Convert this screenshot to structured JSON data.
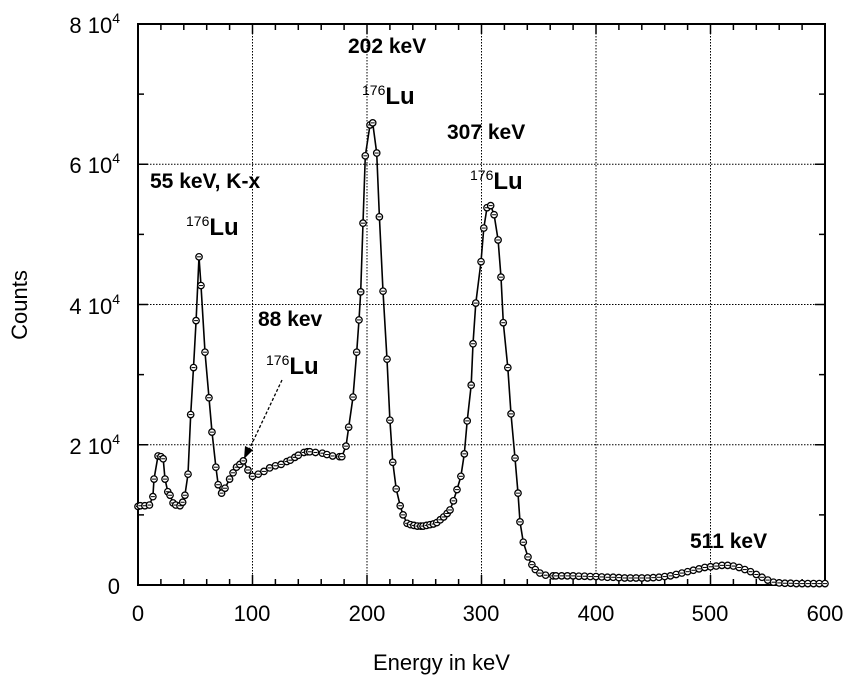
{
  "chart_data": {
    "type": "line",
    "xlabel": "Energy in keV",
    "ylabel": "Counts",
    "xlim": [
      0,
      600
    ],
    "ylim": [
      0,
      80000
    ],
    "grid": true,
    "markers": "circle-cross",
    "x_ticks": [
      "0",
      "100",
      "200",
      "300",
      "400",
      "500",
      "600"
    ],
    "y_ticks": [
      {
        "mantissa": "0",
        "exp": ""
      },
      {
        "mantissa": "2 10",
        "exp": "4"
      },
      {
        "mantissa": "4 10",
        "exp": "4"
      },
      {
        "mantissa": "6 10",
        "exp": "4"
      },
      {
        "mantissa": "8 10",
        "exp": "4"
      }
    ],
    "series": [
      {
        "x": [
          0,
          2,
          6,
          10,
          13,
          14,
          17.5,
          20,
          22,
          23.6,
          26,
          28,
          30.6,
          33,
          36.7,
          39,
          41,
          43.7,
          46,
          48.5,
          50.7,
          53.3,
          55,
          58.5,
          62,
          64.6,
          68,
          70,
          73,
          76,
          80,
          83,
          86,
          89,
          92,
          96,
          100,
          105,
          110,
          115,
          120,
          125,
          130,
          133,
          137,
          140,
          145,
          148,
          150,
          155,
          161,
          165,
          170,
          176,
          178,
          181.7,
          184,
          187.8,
          191,
          193,
          194.5,
          196.5,
          198.5,
          202.6,
          205,
          208.5,
          210.8,
          214,
          217.5,
          220,
          222.5,
          225.5,
          229,
          231.5,
          235,
          238,
          241,
          244,
          247,
          249,
          252,
          255,
          258,
          261,
          264,
          267,
          270,
          272.5,
          275.5,
          278.6,
          282,
          285,
          287.5,
          291,
          292.6,
          295,
          299.6,
          302,
          304.8,
          308,
          311,
          314.5,
          317,
          319,
          323,
          325.8,
          329.3,
          331.9,
          333.6,
          336.5,
          340.6,
          344,
          347,
          351,
          356,
          362.5,
          365,
          370,
          375,
          380,
          385,
          390,
          395,
          400,
          405,
          410,
          415,
          420,
          425,
          430,
          435,
          440,
          445,
          450,
          455,
          460,
          465,
          470,
          475,
          480,
          485,
          490,
          495,
          500,
          505,
          510,
          515,
          520,
          525,
          530,
          535,
          540,
          545,
          550,
          555,
          560,
          565,
          570,
          575,
          580,
          585,
          590,
          595,
          600
        ],
        "y": [
          11200,
          11300,
          11300,
          11400,
          12600,
          15100,
          18400,
          18300,
          18000,
          15100,
          13300,
          12800,
          11700,
          11400,
          11300,
          11800,
          12800,
          15800,
          24300,
          31000,
          37700,
          46800,
          42700,
          33200,
          26700,
          21800,
          16800,
          14300,
          13100,
          13800,
          15100,
          16000,
          16800,
          17200,
          17700,
          16400,
          15500,
          15800,
          16200,
          16700,
          17000,
          17200,
          17600,
          17800,
          18200,
          18500,
          18900,
          19000,
          19000,
          18900,
          18800,
          18600,
          18400,
          18300,
          18300,
          19800,
          22500,
          26800,
          33200,
          37800,
          41800,
          51600,
          61200,
          65600,
          65900,
          61600,
          52500,
          41900,
          32200,
          23500,
          17500,
          13700,
          11300,
          10000,
          8800,
          8600,
          8500,
          8400,
          8400,
          8400,
          8500,
          8600,
          8700,
          8900,
          9300,
          9700,
          10200,
          10700,
          12000,
          13600,
          15500,
          18700,
          23400,
          28500,
          34400,
          40200,
          46100,
          50900,
          53800,
          54100,
          52800,
          49200,
          43900,
          37400,
          31000,
          24400,
          18100,
          13100,
          9000,
          6100,
          4000,
          2900,
          2200,
          1700,
          1400,
          1300,
          1300,
          1300,
          1300,
          1300,
          1250,
          1250,
          1200,
          1200,
          1150,
          1100,
          1100,
          1050,
          1000,
          1000,
          1000,
          1000,
          1000,
          1050,
          1100,
          1200,
          1300,
          1500,
          1700,
          1900,
          2100,
          2300,
          2500,
          2600,
          2700,
          2800,
          2800,
          2700,
          2500,
          2200,
          1900,
          1500,
          1100,
          700,
          400,
          300,
          250,
          250,
          200,
          200,
          200,
          200,
          200,
          200
        ]
      }
    ],
    "annotations": {
      "peak202": {
        "energy": "202 keV",
        "iso_mass": "176",
        "iso_sym": "Lu"
      },
      "peak307": {
        "energy": "307 keV",
        "iso_mass": "176",
        "iso_sym": "Lu"
      },
      "peak55": {
        "energy": "55 keV, K-x",
        "iso_mass": "176",
        "iso_sym": "Lu"
      },
      "peak88": {
        "energy": "88 kev",
        "iso_mass": "176",
        "iso_sym": "Lu"
      },
      "peak511": {
        "energy": "511 keV"
      }
    }
  }
}
